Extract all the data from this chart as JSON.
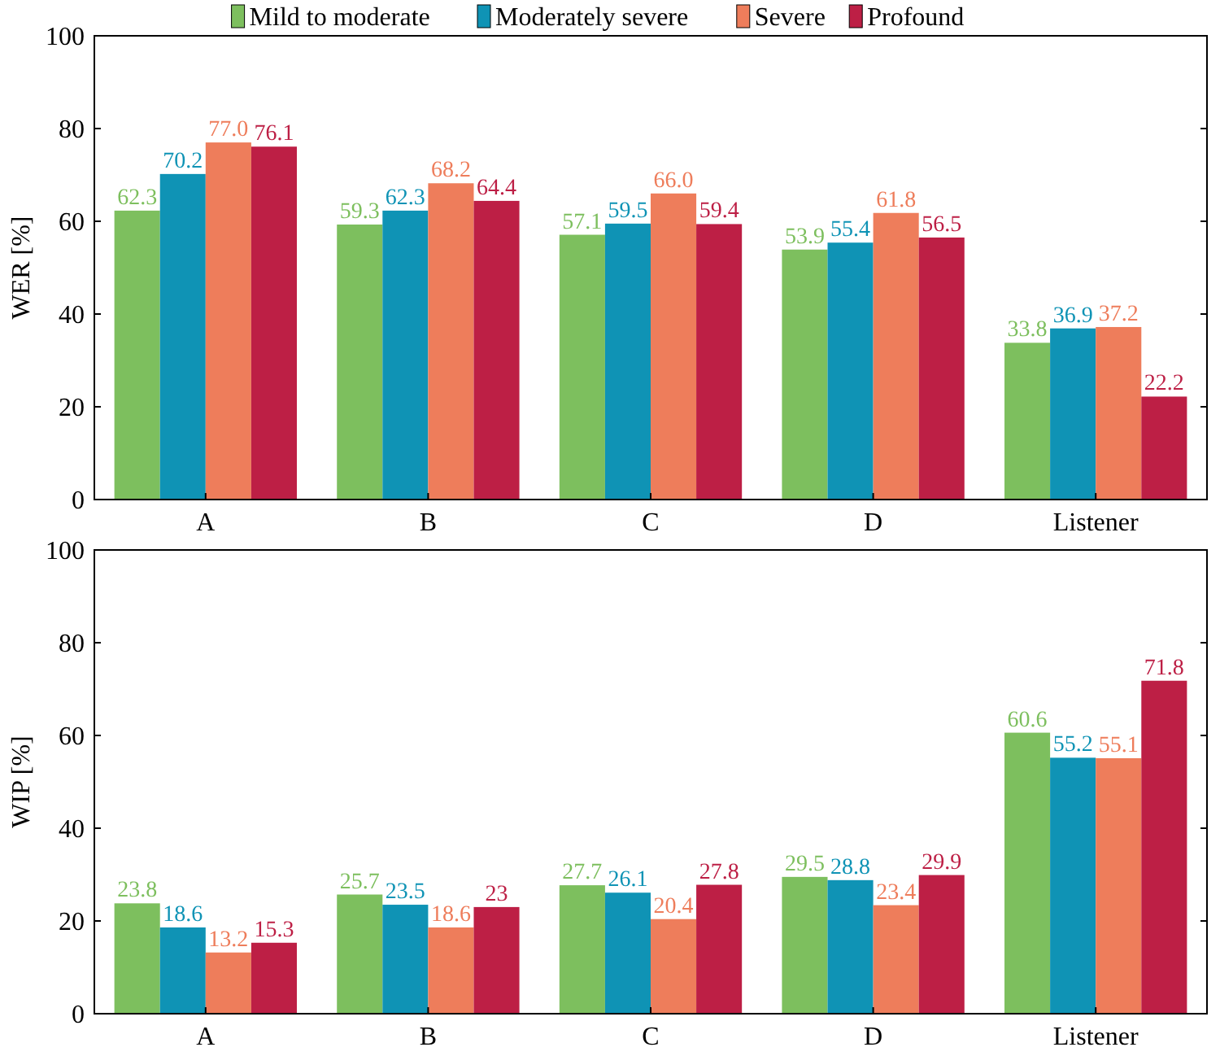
{
  "chart_data": [
    {
      "type": "bar",
      "ylabel": "WER [%]",
      "categories": [
        "A",
        "B",
        "C",
        "D",
        "Listener"
      ],
      "ylim": [
        0,
        100
      ],
      "yticks": [
        0,
        20,
        40,
        60,
        80,
        100
      ],
      "legend": "top",
      "grid": false,
      "series": [
        {
          "name": "Mild to moderate",
          "color": "#7dbf5e",
          "values": [
            62.3,
            59.3,
            57.1,
            53.9,
            33.8
          ],
          "value_labels": [
            "62.3",
            "59.3",
            "57.1",
            "53.9",
            "33.8"
          ]
        },
        {
          "name": "Moderately severe",
          "color": "#0f93b5",
          "values": [
            70.2,
            62.3,
            59.5,
            55.4,
            36.9
          ],
          "value_labels": [
            "70.2",
            "62.3",
            "59.5",
            "55.4",
            "36.9"
          ]
        },
        {
          "name": "Severe",
          "color": "#ee7d5b",
          "values": [
            77.0,
            68.2,
            66.0,
            61.8,
            37.2
          ],
          "value_labels": [
            "77.0",
            "68.2",
            "66.0",
            "61.8",
            "37.2"
          ]
        },
        {
          "name": "Profound",
          "color": "#bd1f45",
          "values": [
            76.1,
            64.4,
            59.4,
            56.5,
            22.2
          ],
          "value_labels": [
            "76.1",
            "64.4",
            "59.4",
            "56.5",
            "22.2"
          ]
        }
      ]
    },
    {
      "type": "bar",
      "ylabel": "WIP [%]",
      "categories": [
        "A",
        "B",
        "C",
        "D",
        "Listener"
      ],
      "ylim": [
        0,
        100
      ],
      "yticks": [
        0,
        20,
        40,
        60,
        80,
        100
      ],
      "grid": false,
      "series": [
        {
          "color": "#7dbf5e",
          "values": [
            23.8,
            25.7,
            27.7,
            29.5,
            60.6
          ],
          "value_labels": [
            "23.8",
            "25.7",
            "27.7",
            "29.5",
            "60.6"
          ]
        },
        {
          "color": "#0f93b5",
          "values": [
            18.6,
            23.5,
            26.1,
            28.8,
            55.2
          ],
          "value_labels": [
            "18.6",
            "23.5",
            "26.1",
            "28.8",
            "55.2"
          ]
        },
        {
          "color": "#ee7d5b",
          "values": [
            13.2,
            18.6,
            20.4,
            23.4,
            55.1
          ],
          "value_labels": [
            "13.2",
            "18.6",
            "20.4",
            "23.4",
            "55.1"
          ]
        },
        {
          "color": "#bd1f45",
          "values": [
            15.3,
            23,
            27.8,
            29.9,
            71.8
          ],
          "value_labels": [
            "15.3",
            "23",
            "27.8",
            "29.9",
            "71.8"
          ]
        }
      ]
    }
  ]
}
